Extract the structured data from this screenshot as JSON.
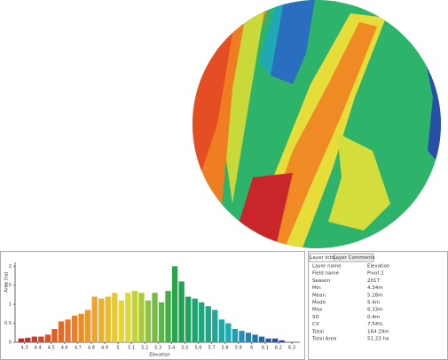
{
  "chart_data": {
    "type": "histogram",
    "x_label": "Elevation",
    "y_label": "Area (ha)",
    "bins": [
      4.25,
      4.3,
      4.35,
      4.4,
      4.45,
      4.5,
      4.55,
      4.6,
      4.65,
      4.7,
      4.75,
      4.8,
      4.85,
      4.9,
      4.95,
      5,
      5.05,
      5.1,
      5.15,
      5.2,
      5.25,
      5.3,
      5.35,
      5.4,
      5.45,
      5.5,
      5.55,
      5.6,
      5.65,
      5.7,
      5.75,
      5.8,
      5.85,
      5.9,
      5.95,
      6,
      6.05,
      6.1,
      6.15,
      6.2,
      6.25
    ],
    "values": [
      0.1,
      0.12,
      0.15,
      0.15,
      0.2,
      0.35,
      0.55,
      0.6,
      0.7,
      0.75,
      0.85,
      1.2,
      1.15,
      1.2,
      1.3,
      1.1,
      1.3,
      1.35,
      1.3,
      1.1,
      1.3,
      1.05,
      1.35,
      2,
      1.6,
      1.2,
      1.15,
      1.05,
      0.95,
      0.85,
      0.6,
      0.5,
      0.35,
      0.3,
      0.25,
      0.2,
      0.15,
      0.1,
      0.1,
      0.05
    ],
    "color_stops": [
      "#c0272d",
      "#ef7d22",
      "#e6dc3a",
      "#1fa34a",
      "#1fa9b5",
      "#2a3f9b"
    ],
    "xlim": [
      4.23,
      6.36
    ],
    "ylim": [
      0,
      2.1
    ],
    "xticks": [
      4.3,
      4.4,
      4.5,
      4.6,
      4.7,
      4.8,
      4.9,
      5,
      5.1,
      5.2,
      5.3,
      5.4,
      5.5,
      5.6,
      5.7,
      5.8,
      5.9,
      6,
      6.1,
      6.2,
      6.3
    ],
    "yticks": [
      0,
      0.5,
      1,
      1.5,
      2
    ]
  },
  "layer_info": {
    "tabs": [
      "Layer Info",
      "Layer Comments"
    ],
    "rows": [
      [
        "Layer name",
        "Elevation"
      ],
      [
        "Field name",
        "Pivot 2"
      ],
      [
        "Season",
        "2017"
      ],
      [
        "Min",
        "4.34m"
      ],
      [
        "Mean",
        "5.28m"
      ],
      [
        "Mode",
        "5.4m"
      ],
      [
        "Max",
        "6.33m"
      ],
      [
        "SD",
        "0.4m"
      ],
      [
        "CV",
        "7.54%"
      ],
      [
        "Total",
        "164.29m"
      ],
      [
        "Total Area",
        "51.23 ha"
      ]
    ]
  }
}
